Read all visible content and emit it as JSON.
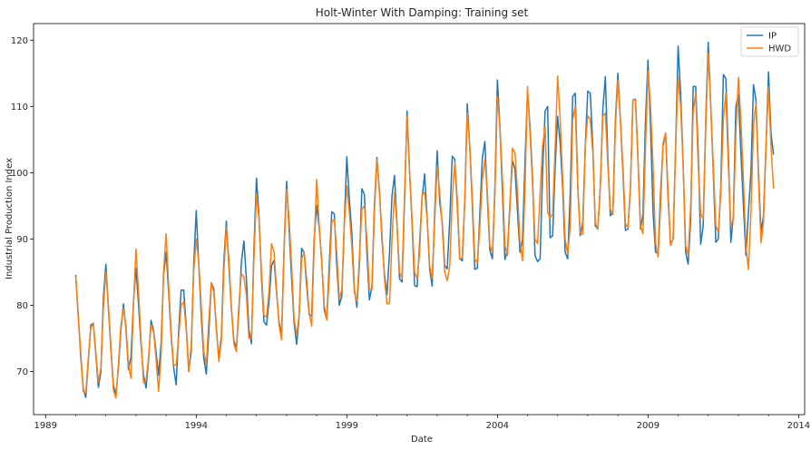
{
  "chart_data": {
    "type": "line",
    "title": "Holt-Winter With Damping: Training set",
    "xlabel": "Date",
    "ylabel": "Industrial Production Index",
    "xlim": [
      1988.6,
      2014.2
    ],
    "ylim": [
      63.5,
      122.5
    ],
    "x_ticks": [
      1989,
      1994,
      1999,
      2004,
      2009,
      2014
    ],
    "y_ticks": [
      70,
      80,
      90,
      100,
      110,
      120
    ],
    "grid": false,
    "legend_position": "top-right",
    "colors": {
      "IP": "#1f77b4",
      "HWD": "#ff7f0e"
    },
    "series": [
      {
        "name": "IP",
        "start_year": 1990,
        "frequency": "monthly",
        "annual": [
          [
            84.6,
            78.5,
            72.2,
            67.4,
            66.1,
            71.5,
            77.0,
            77.3,
            72.6,
            67.6,
            69.9,
            81.0
          ],
          [
            86.2,
            79.5,
            73.4,
            68.0,
            66.5,
            70.5,
            76.3,
            80.2,
            76.5,
            70.3,
            72.2,
            80.4
          ],
          [
            85.6,
            80.1,
            74.2,
            69.5,
            67.5,
            71.6,
            77.7,
            76.2,
            73.0,
            69.4,
            74.3,
            84.5
          ],
          [
            88.0,
            82.0,
            75.5,
            70.6,
            68.0,
            76.0,
            82.3,
            82.3,
            77.0,
            70.0,
            73.0,
            86.0
          ],
          [
            94.3,
            86.2,
            78.5,
            72.0,
            69.6,
            75.6,
            83.4,
            82.5,
            76.5,
            72.0,
            75.3,
            86.5
          ],
          [
            92.7,
            86.0,
            79.6,
            74.7,
            73.5,
            79.0,
            86.5,
            89.7,
            84.0,
            76.3,
            74.2,
            88.5
          ],
          [
            99.2,
            93.5,
            84.2,
            77.5,
            77.0,
            80.5,
            86.0,
            86.8,
            82.0,
            77.5,
            75.6,
            88.5
          ],
          [
            98.7,
            91.5,
            84.2,
            77.3,
            74.1,
            78.2,
            88.6,
            87.9,
            83.0,
            78.6,
            78.4,
            90.0
          ],
          [
            95.1,
            91.6,
            86.8,
            79.3,
            77.8,
            86.0,
            94.1,
            93.8,
            86.0,
            80.0,
            81.4,
            92.2
          ],
          [
            102.4,
            96.0,
            91.0,
            82.5,
            79.7,
            86.0,
            97.6,
            96.7,
            88.0,
            80.8,
            82.8,
            95.0
          ],
          [
            102.3,
            97.2,
            90.0,
            84.7,
            81.6,
            88.0,
            96.5,
            99.6,
            92.0,
            84.0,
            83.5,
            96.0
          ],
          [
            109.3,
            100.2,
            92.3,
            83.0,
            82.8,
            89.5,
            96.2,
            99.8,
            93.0,
            85.5,
            82.9,
            94.0
          ],
          [
            103.3,
            95.5,
            92.5,
            86.0,
            85.5,
            93.0,
            102.5,
            102.0,
            95.0,
            87.0,
            86.7,
            96.0
          ],
          [
            110.4,
            103.8,
            95.0,
            85.4,
            85.6,
            94.0,
            102.2,
            104.7,
            96.0,
            88.3,
            87.0,
            98.0
          ],
          [
            114.0,
            106.8,
            97.0,
            86.9,
            88.3,
            95.5,
            101.8,
            100.5,
            94.0,
            88.0,
            89.9,
            102.0
          ],
          [
            112.2,
            107.0,
            99.0,
            87.5,
            86.6,
            87.0,
            100.0,
            109.3,
            110.0,
            90.2,
            90.5,
            101.0
          ],
          [
            108.5,
            104.5,
            97.5,
            88.0,
            87.0,
            97.0,
            111.5,
            112.0,
            98.0,
            90.5,
            92.5,
            104.0
          ],
          [
            112.3,
            112.0,
            104.0,
            92.0,
            91.5,
            98.0,
            109.5,
            114.5,
            102.0,
            93.5,
            94.0,
            108.0
          ],
          [
            115.0,
            108.0,
            100.0,
            91.3,
            91.5,
            98.0,
            111.0,
            111.1,
            102.0,
            91.5,
            93.8,
            108.0
          ],
          [
            117.0,
            107.0,
            94.0,
            88.0,
            87.8,
            97.0,
            104.0,
            106.0,
            96.0,
            89.2,
            90.0,
            104.0
          ],
          [
            119.1,
            112.0,
            101.0,
            88.0,
            86.2,
            93.0,
            113.0,
            113.0,
            103.0,
            89.2,
            92.0,
            108.0
          ],
          [
            119.7,
            110.0,
            100.0,
            89.5,
            90.0,
            98.0,
            114.8,
            114.2,
            103.0,
            89.5,
            93.5,
            110.0
          ],
          [
            111.8,
            103.0,
            95.0,
            87.5,
            94.0,
            100.0,
            113.3,
            111.0,
            100.0,
            91.0,
            93.5,
            104.0
          ],
          [
            115.2,
            106.0,
            102.7
          ]
        ]
      },
      {
        "name": "HWD",
        "start_year": 1990,
        "frequency": "monthly",
        "annual": [
          [
            84.4,
            78.0,
            73.0,
            67.0,
            66.8,
            72.0,
            76.6,
            77.2,
            73.0,
            68.4,
            70.5,
            79.5
          ],
          [
            85.0,
            80.0,
            74.0,
            67.2,
            66.0,
            71.0,
            77.0,
            79.5,
            77.0,
            71.0,
            69.0,
            80.0
          ],
          [
            88.5,
            82.0,
            75.0,
            68.3,
            68.7,
            72.0,
            77.0,
            76.0,
            72.0,
            67.0,
            72.5,
            85.0
          ],
          [
            90.8,
            83.0,
            76.0,
            71.0,
            71.0,
            75.0,
            80.0,
            80.5,
            76.5,
            70.0,
            74.0,
            85.0
          ],
          [
            90.0,
            86.5,
            80.0,
            73.0,
            71.0,
            77.5,
            83.4,
            82.0,
            77.0,
            71.5,
            74.5,
            85.0
          ],
          [
            91.8,
            87.0,
            80.0,
            74.2,
            73.0,
            80.0,
            84.8,
            84.3,
            81.5,
            75.0,
            75.0,
            87.0
          ],
          [
            96.8,
            93.0,
            85.0,
            78.5,
            78.2,
            82.0,
            89.3,
            88.0,
            82.5,
            77.0,
            74.8,
            88.0
          ],
          [
            97.5,
            93.0,
            86.0,
            78.0,
            75.5,
            78.5,
            87.0,
            88.0,
            84.0,
            79.0,
            76.8,
            89.0
          ],
          [
            99.0,
            92.0,
            86.5,
            80.0,
            77.8,
            84.0,
            92.5,
            93.0,
            88.0,
            81.0,
            82.3,
            92.0
          ],
          [
            98.0,
            94.0,
            89.0,
            82.0,
            80.5,
            87.0,
            94.5,
            95.0,
            90.0,
            82.5,
            82.4,
            94.0
          ],
          [
            102.0,
            97.0,
            91.0,
            84.0,
            80.2,
            80.3,
            90.0,
            97.0,
            92.0,
            85.0,
            84.0,
            97.0
          ],
          [
            108.5,
            100.0,
            93.0,
            85.0,
            84.0,
            88.0,
            96.7,
            97.0,
            93.0,
            86.0,
            84.0,
            93.0
          ],
          [
            101.0,
            97.0,
            92.0,
            85.0,
            83.7,
            86.0,
            96.0,
            101.6,
            96.0,
            87.0,
            87.2,
            96.0
          ],
          [
            109.0,
            104.0,
            96.0,
            87.0,
            86.4,
            92.0,
            99.0,
            102.0,
            97.0,
            89.0,
            88.0,
            97.0
          ],
          [
            111.5,
            107.0,
            99.0,
            89.0,
            87.5,
            95.0,
            103.7,
            103.0,
            97.0,
            89.5,
            86.7,
            98.0
          ],
          [
            113.0,
            106.0,
            98.0,
            90.0,
            89.3,
            97.0,
            104.0,
            107.0,
            94.0,
            93.2,
            93.8,
            104.0
          ],
          [
            114.6,
            108.0,
            99.0,
            90.0,
            87.7,
            92.0,
            108.0,
            110.0,
            98.0,
            91.0,
            90.7,
            104.0
          ],
          [
            108.6,
            108.0,
            103.0,
            92.5,
            91.5,
            98.0,
            108.5,
            109.0,
            101.0,
            94.5,
            93.7,
            107.0
          ],
          [
            114.0,
            108.0,
            101.0,
            92.3,
            91.7,
            98.0,
            111.0,
            111.0,
            102.0,
            92.0,
            90.8,
            104.0
          ],
          [
            115.4,
            110.0,
            101.0,
            89.5,
            87.3,
            95.0,
            104.5,
            106.0,
            97.0,
            89.0,
            90.0,
            104.0
          ],
          [
            114.5,
            110.0,
            101.0,
            89.0,
            87.5,
            95.0,
            109.0,
            112.0,
            101.0,
            93.8,
            93.0,
            107.0
          ],
          [
            118.0,
            110.0,
            101.0,
            92.0,
            91.0,
            97.0,
            108.0,
            112.0,
            101.0,
            92.0,
            93.0,
            106.0
          ],
          [
            114.4,
            108.0,
            99.0,
            89.0,
            85.4,
            94.0,
            107.0,
            110.5,
            99.0,
            89.4,
            92.5,
            104.0
          ],
          [
            113.0,
            104.0,
            97.6
          ]
        ]
      }
    ]
  }
}
